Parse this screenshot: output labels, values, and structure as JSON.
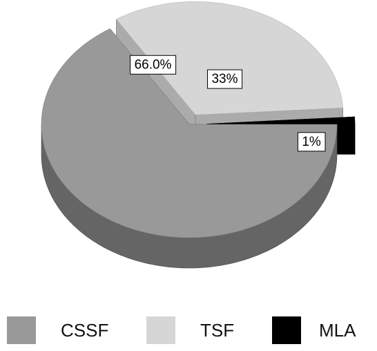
{
  "chart_data": {
    "type": "pie",
    "style": "3d-exploded",
    "title": "",
    "categories": [
      "CSSF",
      "TSF",
      "MLA"
    ],
    "values": [
      66.0,
      33,
      1
    ],
    "data_labels": [
      "66.0%",
      "33%",
      "1%"
    ],
    "colors": {
      "CSSF": "#999999",
      "TSF": "#d6d6d6",
      "MLA": "#000000"
    },
    "legend_position": "bottom"
  }
}
